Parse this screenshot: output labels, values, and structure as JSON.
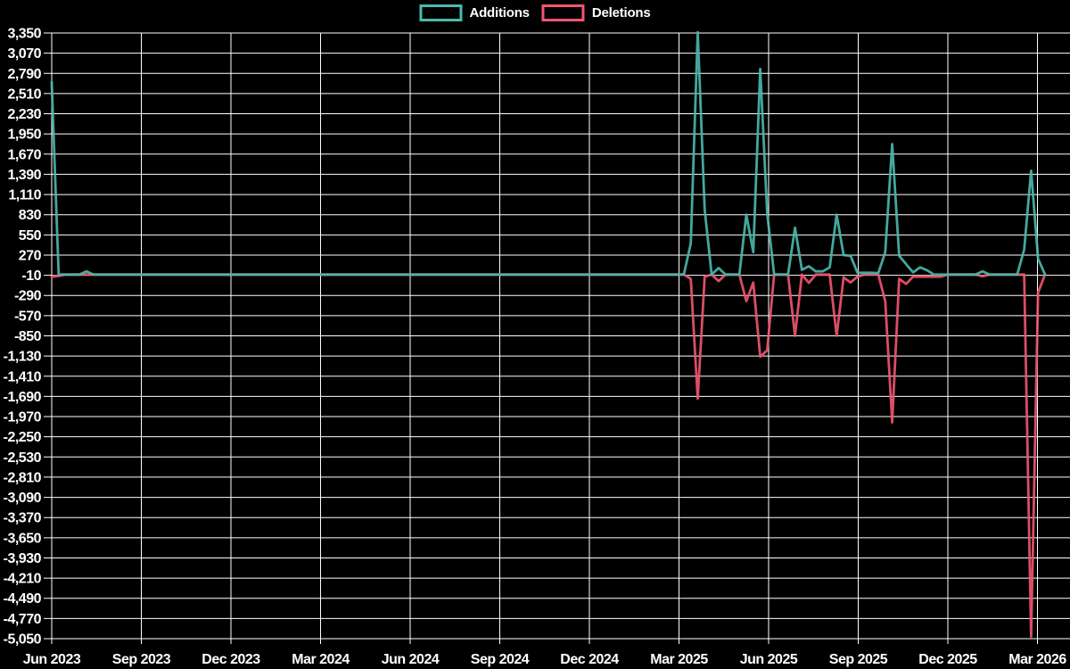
{
  "legend": {
    "additions_label": "Additions",
    "deletions_label": "Deletions"
  },
  "colors": {
    "background": "#000000",
    "grid": "#ffffff",
    "text": "#ffffff",
    "additions": "#4bb9ae",
    "deletions": "#f25670"
  },
  "chart_data": {
    "type": "line",
    "title": "",
    "xlabel": "",
    "ylabel": "",
    "grid": true,
    "legend_position": "top-center",
    "x_tick_labels": [
      "Jun 2023",
      "Sep 2023",
      "Dec 2023",
      "Mar 2024",
      "Jun 2024",
      "Sep 2024",
      "Dec 2024",
      "Mar 2025",
      "Jun 2025",
      "Sep 2025",
      "Dec 2025",
      "Mar 2026"
    ],
    "y_tick_labels": [
      "3,350",
      "3,070",
      "2,790",
      "2,510",
      "2,230",
      "1,950",
      "1,670",
      "1,390",
      "1,110",
      "830",
      "550",
      "270",
      "-10",
      "-290",
      "-570",
      "-850",
      "-1,130",
      "-1,410",
      "-1,690",
      "-1,970",
      "-2,250",
      "-2,530",
      "-2,810",
      "-3,090",
      "-3,370",
      "-3,650",
      "-3,930",
      "-4,210",
      "-4,490",
      "-4,770",
      "-5,050"
    ],
    "y_max": 3350,
    "y_min": -5050,
    "y_step": 280,
    "weeks": 144,
    "x_range_note": "weekly points from Jun 2023 to Mar 2026",
    "series": [
      {
        "name": "Additions",
        "color": "#4bb9ae",
        "values": [
          2670,
          0,
          0,
          0,
          0,
          45,
          0,
          0,
          0,
          0,
          0,
          0,
          0,
          0,
          0,
          0,
          0,
          0,
          0,
          0,
          0,
          0,
          0,
          0,
          0,
          0,
          0,
          0,
          0,
          0,
          0,
          0,
          0,
          0,
          0,
          0,
          0,
          0,
          0,
          0,
          0,
          0,
          0,
          0,
          0,
          0,
          0,
          0,
          0,
          0,
          0,
          0,
          0,
          0,
          0,
          0,
          0,
          0,
          0,
          0,
          0,
          0,
          0,
          0,
          0,
          0,
          0,
          0,
          0,
          0,
          0,
          0,
          0,
          0,
          0,
          0,
          0,
          0,
          0,
          0,
          0,
          0,
          0,
          0,
          0,
          0,
          0,
          0,
          0,
          0,
          0,
          0,
          430,
          3360,
          900,
          0,
          90,
          0,
          0,
          0,
          830,
          310,
          2850,
          850,
          0,
          0,
          0,
          650,
          65,
          115,
          45,
          45,
          100,
          830,
          270,
          260,
          25,
          25,
          25,
          20,
          310,
          1810,
          260,
          145,
          30,
          100,
          60,
          0,
          0,
          0,
          0,
          0,
          0,
          0,
          45,
          0,
          0,
          0,
          0,
          0,
          345,
          1440,
          220,
          0
        ]
      },
      {
        "name": "Deletions",
        "color": "#f25670",
        "values": [
          -30,
          -20,
          0,
          0,
          0,
          0,
          0,
          0,
          0,
          0,
          0,
          0,
          0,
          0,
          0,
          0,
          0,
          0,
          0,
          0,
          0,
          0,
          0,
          0,
          0,
          0,
          0,
          0,
          0,
          0,
          0,
          0,
          0,
          0,
          0,
          0,
          0,
          0,
          0,
          0,
          0,
          0,
          0,
          0,
          0,
          0,
          0,
          0,
          0,
          0,
          0,
          0,
          0,
          0,
          0,
          0,
          0,
          0,
          0,
          0,
          0,
          0,
          0,
          0,
          0,
          0,
          0,
          0,
          0,
          0,
          0,
          0,
          0,
          0,
          0,
          0,
          0,
          0,
          0,
          0,
          0,
          0,
          0,
          0,
          0,
          0,
          0,
          0,
          0,
          0,
          0,
          0,
          -60,
          -1720,
          -30,
          0,
          -90,
          0,
          0,
          0,
          -370,
          -110,
          -1140,
          -1050,
          0,
          0,
          0,
          -850,
          0,
          -115,
          0,
          0,
          0,
          -850,
          -40,
          -110,
          -30,
          0,
          0,
          0,
          -370,
          -2050,
          -60,
          -130,
          -30,
          -30,
          -30,
          -30,
          -30,
          0,
          0,
          0,
          0,
          0,
          -25,
          0,
          0,
          0,
          0,
          0,
          0,
          -5020,
          -250,
          0
        ]
      }
    ]
  }
}
